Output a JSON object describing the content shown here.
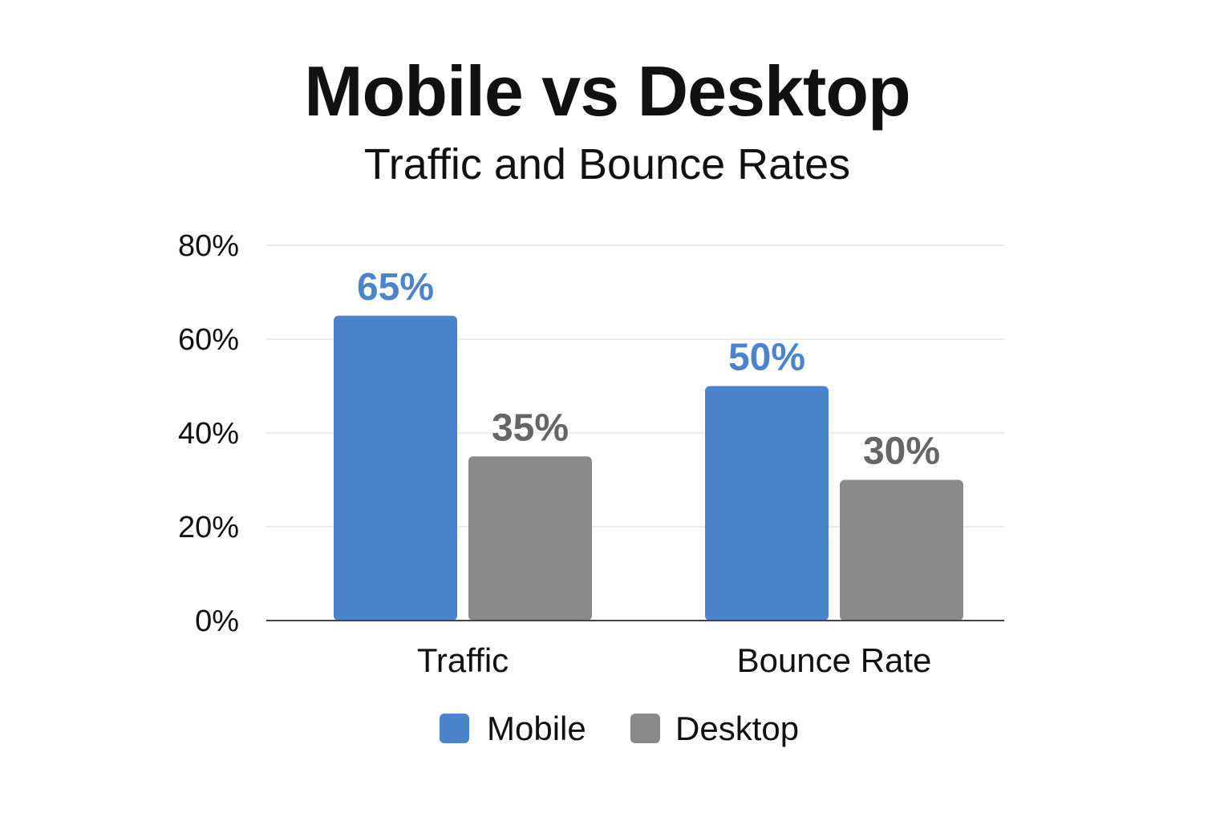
{
  "chart_data": {
    "type": "bar",
    "title": "Mobile vs Desktop",
    "subtitle": "Traffic and Bounce Rates",
    "categories": [
      "Traffic",
      "Bounce Rate"
    ],
    "series": [
      {
        "name": "Mobile",
        "values": [
          65,
          50
        ],
        "value_labels": [
          "65%",
          "50%"
        ],
        "color": "#4B84CD"
      },
      {
        "name": "Desktop",
        "values": [
          35,
          30
        ],
        "value_labels": [
          "35%",
          "30%"
        ],
        "color": "#8A8A8A"
      }
    ],
    "ylim": [
      0,
      80
    ],
    "yticks": [
      0,
      20,
      40,
      60,
      80
    ],
    "ytick_labels": [
      "0%",
      "20%",
      "40%",
      "60%",
      "80%"
    ],
    "grid": true,
    "legend_position": "bottom",
    "xlabel": "",
    "ylabel": ""
  },
  "colors": {
    "mobile_label": "#4B84CD",
    "desktop_label": "#666666",
    "grid": "#EBEBEB",
    "axis": "#444444"
  }
}
